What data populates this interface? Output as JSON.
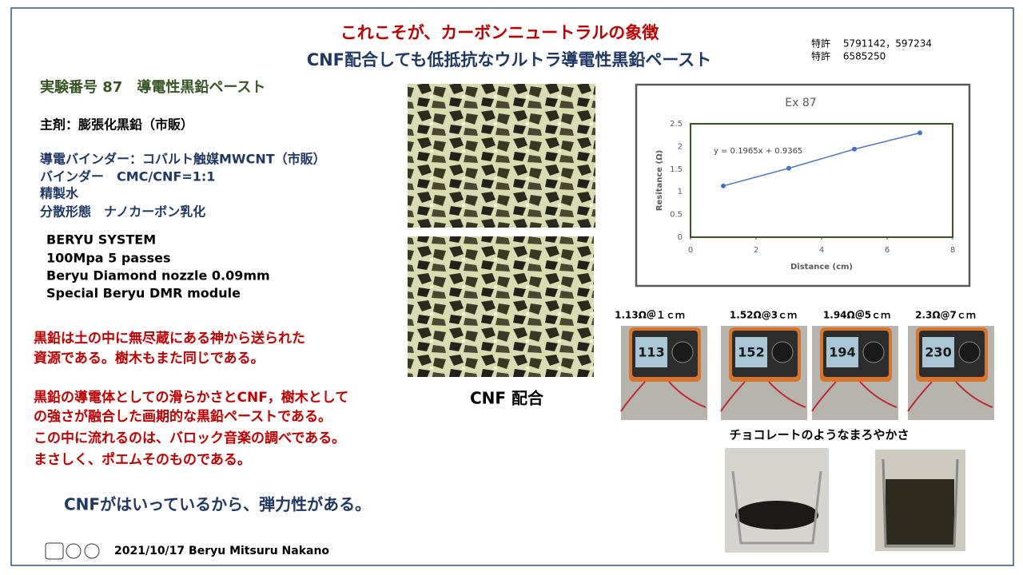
{
  "header": {
    "title": "これこそが、カーボンニュートラルの象徴",
    "subtitle": "CNF配合しても低抵抗なウルトラ導電性黒鉛ペースト",
    "patents": [
      "特許　 5791142，597234",
      "特許　 6585250"
    ]
  },
  "experiment": {
    "heading": "実験番号 87　導電性黒鉛ペースト",
    "main_agent": "主剤：膨張化黒鉛（市販）",
    "recipe": [
      "導電バインダー：コバルト触媒MWCNT（市販）",
      "バインダー　CMC/CNF=1:1",
      "精製水",
      "分散形態　ナノカーボン乳化"
    ],
    "system": [
      "BERYU SYSTEM",
      "100Mpa 5 passes",
      "Beryu Diamond nozzle 0.09mm",
      "Special Beryu DMR module"
    ]
  },
  "statements": {
    "paragraph1": [
      "黒鉛は土の中に無尽蔵にある神から送られた",
      "資源である。樹木もまた同じである。"
    ],
    "paragraph2": [
      "黒鉛の導電体としての滑らかさとCNF，樹木として",
      "の強さが融合した画期的な黒鉛ペーストである。",
      "この中に流れるのは、バロック音楽の調べである。",
      "まさしく、ポエムそのものである。"
    ],
    "note": "CNFがはいっているから、弾力性がある。"
  },
  "image_caption": "CNF 配合",
  "chart": {
    "type": "line",
    "title": "Ex 87",
    "trendline_label": "y = 0.1965x + 0.9365",
    "x_label": "Distance (cm)",
    "y_label": "Resitance (Ω)",
    "x": [
      1,
      3,
      5,
      7
    ],
    "values": [
      1.13,
      1.52,
      1.94,
      2.3
    ],
    "color": "#4472c4",
    "xlim": [
      0,
      8
    ],
    "xticks": [
      0,
      2,
      4,
      6,
      8
    ],
    "ylim": [
      0,
      2.5
    ],
    "yticks": [
      0,
      0.5,
      1,
      1.5,
      2,
      2.5
    ],
    "grid": false
  },
  "meters": [
    {
      "label": "1.13Ω＠１ｃｍ",
      "reading": "113"
    },
    {
      "label": "1.52Ω@3ｃｍ",
      "reading": "152"
    },
    {
      "label": "1.94Ω＠5ｃｍ",
      "reading": "194"
    },
    {
      "label": "2.3Ω@7ｃｍ",
      "reading": "230"
    }
  ],
  "beaker_caption": "チョコレートのようなまろやかさ",
  "footer": "2021/10/17  Beryu Mitsuru Nakano"
}
